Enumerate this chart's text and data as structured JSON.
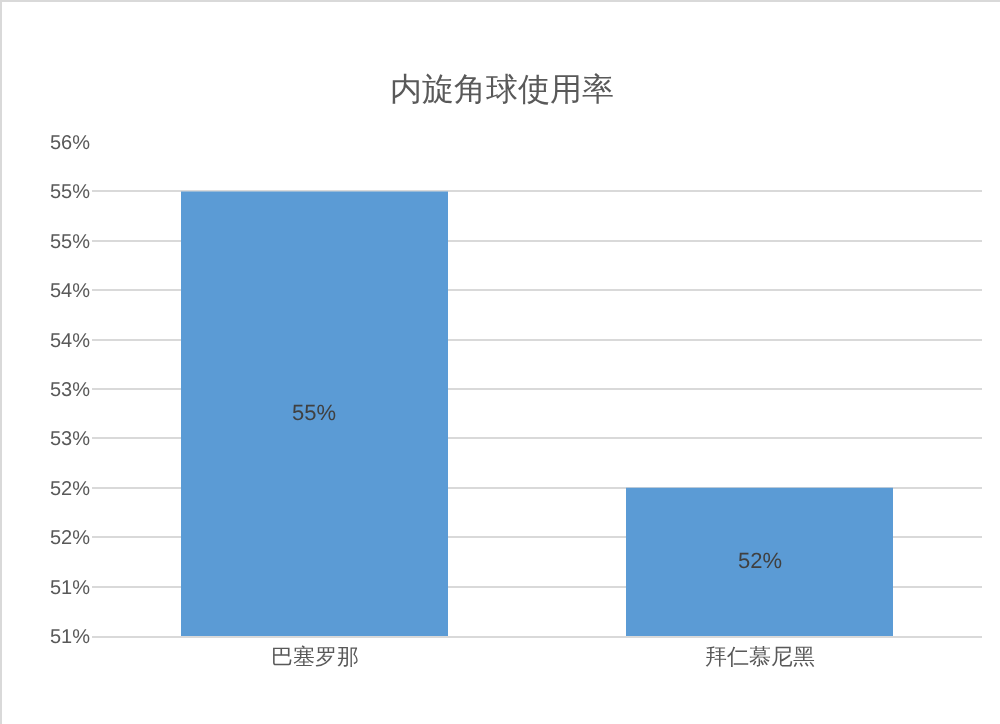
{
  "chart_data": {
    "type": "bar",
    "title": "内旋角球使用率",
    "categories": [
      "巴塞罗那",
      "拜仁慕尼黑"
    ],
    "values": [
      55,
      52
    ],
    "value_labels": [
      "55%",
      "52%"
    ],
    "color": "#5b9bd5",
    "ylim": [
      50.5,
      55.5
    ],
    "yticks": [
      {
        "value": 50.5,
        "label": "51%"
      },
      {
        "value": 51,
        "label": "51%"
      },
      {
        "value": 51.5,
        "label": "52%"
      },
      {
        "value": 52,
        "label": "52%"
      },
      {
        "value": 52.5,
        "label": "53%"
      },
      {
        "value": 53,
        "label": "53%"
      },
      {
        "value": 53.5,
        "label": "54%"
      },
      {
        "value": 54,
        "label": "54%"
      },
      {
        "value": 54.5,
        "label": "55%"
      },
      {
        "value": 55,
        "label": "55%"
      },
      {
        "value": 55.5,
        "label": "56%"
      }
    ],
    "grid": "y"
  }
}
